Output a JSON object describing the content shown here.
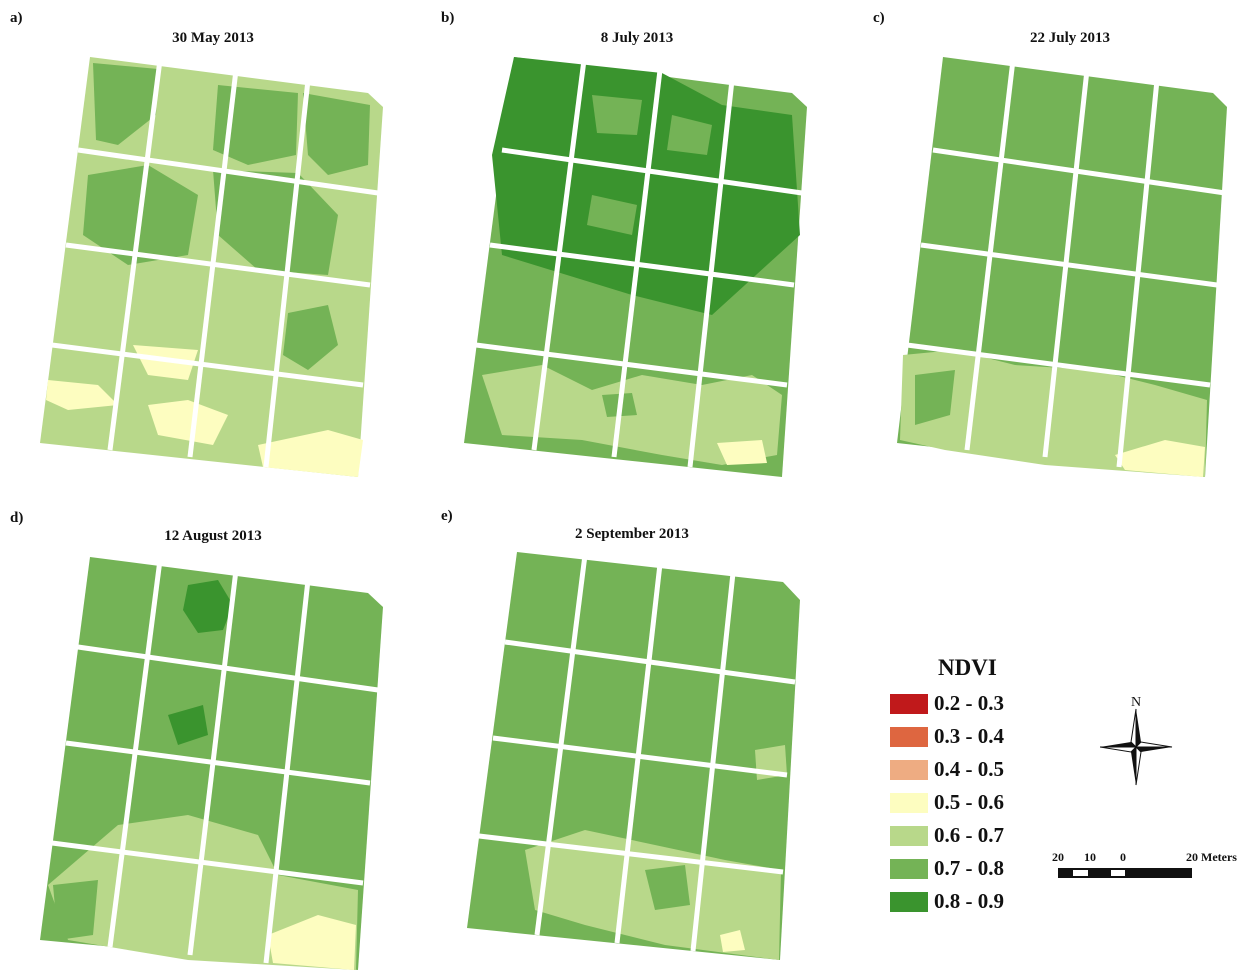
{
  "panels": [
    {
      "letter": "a)",
      "title": "30 May 2013"
    },
    {
      "letter": "b)",
      "title": "8 July 2013"
    },
    {
      "letter": "c)",
      "title": "22 July 2013"
    },
    {
      "letter": "d)",
      "title": "12 August 2013"
    },
    {
      "letter": "e)",
      "title": "2 September 2013"
    }
  ],
  "legend": {
    "title": "NDVI",
    "classes": [
      {
        "label": "0.2 - 0.3",
        "color": "#c0191b"
      },
      {
        "label": "0.3 - 0.4",
        "color": "#de6640"
      },
      {
        "label": "0.4 - 0.5",
        "color": "#eeac82"
      },
      {
        "label": "0.5 - 0.6",
        "color": "#fdfdc0"
      },
      {
        "label": "0.6 - 0.7",
        "color": "#b8d88a"
      },
      {
        "label": "0.7 - 0.8",
        "color": "#74b356"
      },
      {
        "label": "0.8 - 0.9",
        "color": "#3a942e"
      }
    ]
  },
  "north_arrow": {
    "label": "N"
  },
  "scale_bar": {
    "ticks": [
      "20",
      "10",
      "0",
      "20 Meters"
    ]
  },
  "map_colors": {
    "dominant": [
      "#b8d88a",
      "#3a942e",
      "#74b356",
      "#74b356",
      "#74b356"
    ]
  }
}
